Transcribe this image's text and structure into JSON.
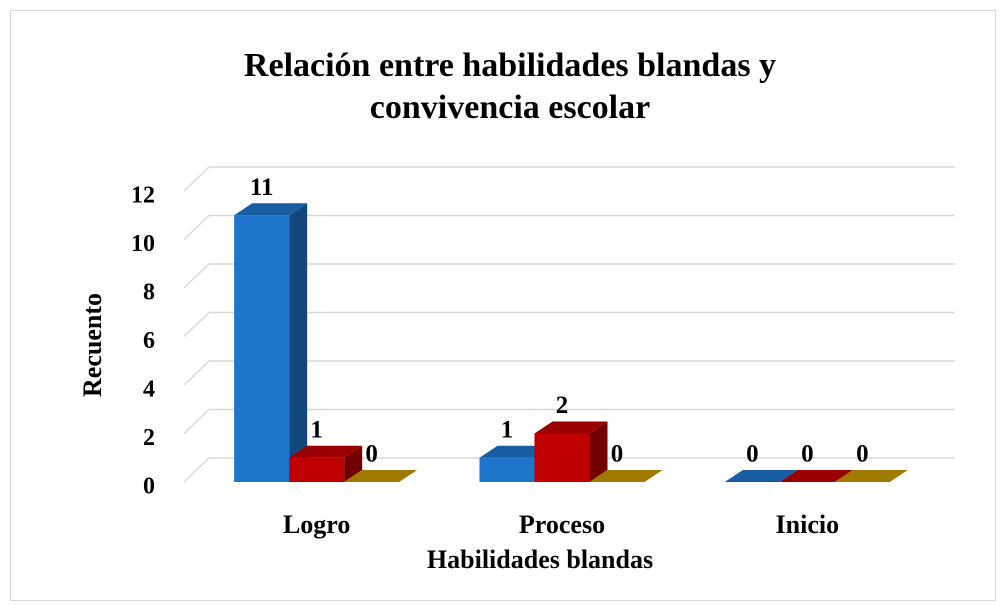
{
  "chart_data": {
    "type": "bar3d",
    "title": "Relación entre habilidades blandas y",
    "title_line2": "convivencia escolar",
    "x_label": "Habilidades blandas",
    "y_label": "Recuento",
    "categories": [
      "Logro",
      "Proceso",
      "Inicio"
    ],
    "series": [
      {
        "color": "#1f74cc",
        "values": [
          11,
          1,
          0
        ]
      },
      {
        "color": "#c00000",
        "values": [
          1,
          2,
          0
        ]
      },
      {
        "color": "#c99a00",
        "values": [
          0,
          0,
          0
        ]
      }
    ],
    "ylim": [
      0,
      12
    ],
    "yticks": [
      0,
      2,
      4,
      6,
      8,
      10,
      12
    ],
    "grid": true
  }
}
